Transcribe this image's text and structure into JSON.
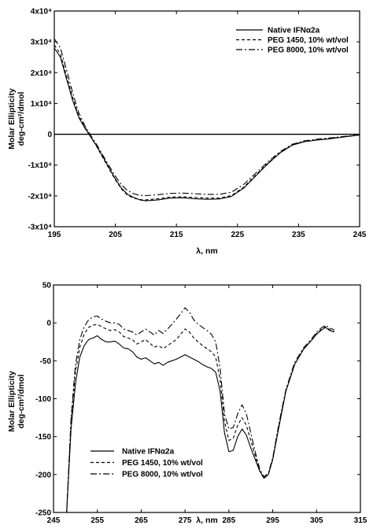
{
  "chart_data": [
    {
      "type": "line",
      "xlabel": "λ, nm",
      "ylabel": [
        "Molar Ellipticity",
        "deg-cm²/dmol"
      ],
      "xlim": [
        195,
        245
      ],
      "ylim": [
        -30000,
        40000
      ],
      "xticks": [
        195,
        205,
        215,
        225,
        235,
        245
      ],
      "xtick_labels": [
        "195",
        "205",
        "215",
        "225",
        "235",
        "245"
      ],
      "yticks": [
        40000,
        30000,
        20000,
        10000,
        0,
        -10000,
        -20000,
        -30000
      ],
      "ytick_labels": [
        "4x10⁴",
        "3x10⁴",
        "2x10⁴",
        "1x10⁴",
        "0",
        "-1x10⁴",
        "-2x10⁴",
        "-3x10⁴"
      ],
      "grid": false,
      "zero_line": true,
      "legend_position": "top-right",
      "series": [
        {
          "name": "Native IFNα2a",
          "style": "solid",
          "x": [
            195,
            196,
            197,
            198,
            199,
            200,
            201,
            202,
            203,
            204,
            205,
            206,
            207,
            208,
            209,
            210,
            212,
            214,
            216,
            218,
            220,
            222,
            224,
            226,
            228,
            230,
            232,
            234,
            236,
            238,
            240,
            242,
            245
          ],
          "y": [
            28000,
            25000,
            18000,
            11000,
            5500,
            2000,
            -1000,
            -4000,
            -7500,
            -11000,
            -14500,
            -17500,
            -19500,
            -20500,
            -21300,
            -21600,
            -21300,
            -20700,
            -20600,
            -20900,
            -21100,
            -21000,
            -20200,
            -17500,
            -13500,
            -9500,
            -6000,
            -3500,
            -2400,
            -1900,
            -1500,
            -1000,
            -200
          ]
        },
        {
          "name": "PEG 1450, 10% wt/vol",
          "style": "dashed",
          "x": [
            195,
            196,
            197,
            198,
            199,
            200,
            201,
            202,
            203,
            204,
            205,
            206,
            207,
            208,
            209,
            210,
            212,
            214,
            216,
            218,
            220,
            222,
            224,
            226,
            228,
            230,
            232,
            234,
            236,
            238,
            240,
            242,
            245
          ],
          "y": [
            29000,
            26000,
            19000,
            12000,
            6000,
            2300,
            -800,
            -4200,
            -7800,
            -11300,
            -14800,
            -17800,
            -19800,
            -20700,
            -21200,
            -21300,
            -20900,
            -20400,
            -20300,
            -20500,
            -20700,
            -20700,
            -19900,
            -17200,
            -13200,
            -9300,
            -5900,
            -3400,
            -2300,
            -1800,
            -1400,
            -900,
            -200
          ]
        },
        {
          "name": "PEG 8000, 10% wt/vol",
          "style": "dashdot",
          "x": [
            195,
            196,
            197,
            198,
            199,
            200,
            201,
            202,
            203,
            204,
            205,
            206,
            207,
            208,
            209,
            210,
            212,
            214,
            216,
            218,
            220,
            222,
            224,
            226,
            228,
            230,
            232,
            234,
            236,
            238,
            240,
            242,
            245
          ],
          "y": [
            31000,
            28000,
            21000,
            13500,
            7000,
            2800,
            -500,
            -3500,
            -7000,
            -10300,
            -13600,
            -16400,
            -18300,
            -19300,
            -19800,
            -19900,
            -19600,
            -19200,
            -19100,
            -19300,
            -19500,
            -19500,
            -18800,
            -16300,
            -12600,
            -8900,
            -5600,
            -3200,
            -2100,
            -1600,
            -1200,
            -800,
            -150
          ]
        }
      ]
    },
    {
      "type": "line",
      "xlabel": "λ, nm",
      "ylabel": [
        "Molar Ellipticity",
        "deg-cm²/dmol"
      ],
      "xlim": [
        245,
        315
      ],
      "ylim": [
        -250,
        50
      ],
      "xticks": [
        245,
        255,
        265,
        275,
        285,
        295,
        305,
        315
      ],
      "xtick_labels": [
        "245",
        "255",
        "265",
        "275",
        "285",
        "295",
        "305",
        "315"
      ],
      "yticks": [
        50,
        0,
        -50,
        -100,
        -150,
        -200,
        -250
      ],
      "ytick_labels": [
        "50",
        "0",
        "-50",
        "-100",
        "-150",
        "-200",
        "-250"
      ],
      "grid": false,
      "legend_position": "bottom-left",
      "series": [
        {
          "name": "Native IFNα2a",
          "style": "solid",
          "x": [
            248,
            249,
            250,
            251,
            252,
            253,
            254,
            255,
            256,
            257,
            258,
            259,
            260,
            261,
            262,
            263,
            264,
            265,
            266,
            267,
            268,
            269,
            270,
            271,
            272,
            273,
            274,
            275,
            276,
            277,
            278,
            279,
            280,
            281,
            282,
            283,
            284,
            285,
            286,
            287,
            288,
            289,
            290,
            291,
            292,
            293,
            294,
            295,
            296,
            297,
            298,
            300,
            302,
            304,
            305,
            306,
            307,
            308,
            309
          ],
          "y": [
            -250,
            -140,
            -80,
            -45,
            -30,
            -22,
            -20,
            -17,
            -22,
            -25,
            -25,
            -24,
            -28,
            -33,
            -34,
            -38,
            -45,
            -48,
            -46,
            -50,
            -54,
            -52,
            -56,
            -52,
            -50,
            -48,
            -45,
            -42,
            -45,
            -48,
            -51,
            -55,
            -58,
            -60,
            -65,
            -90,
            -145,
            -170,
            -168,
            -150,
            -140,
            -148,
            -165,
            -180,
            -195,
            -205,
            -200,
            -180,
            -150,
            -120,
            -90,
            -55,
            -35,
            -22,
            -15,
            -10,
            -6,
            -10,
            -12
          ]
        },
        {
          "name": "PEG 1450, 10% wt/vol",
          "style": "dashed",
          "x": [
            248,
            249,
            250,
            251,
            252,
            253,
            254,
            255,
            256,
            257,
            258,
            259,
            260,
            261,
            262,
            263,
            264,
            265,
            266,
            267,
            268,
            269,
            270,
            271,
            272,
            273,
            274,
            275,
            276,
            277,
            278,
            279,
            280,
            281,
            282,
            283,
            284,
            285,
            286,
            287,
            288,
            289,
            290,
            291,
            292,
            293,
            294,
            295,
            296,
            297,
            298,
            300,
            302,
            304,
            305,
            306,
            307,
            308,
            309
          ],
          "y": [
            -250,
            -130,
            -65,
            -32,
            -15,
            -6,
            -3,
            -2,
            -5,
            -8,
            -10,
            -9,
            -12,
            -18,
            -20,
            -22,
            -28,
            -25,
            -22,
            -27,
            -32,
            -30,
            -34,
            -30,
            -26,
            -22,
            -15,
            -8,
            -12,
            -20,
            -25,
            -30,
            -34,
            -38,
            -45,
            -75,
            -130,
            -155,
            -152,
            -135,
            -125,
            -135,
            -155,
            -175,
            -195,
            -205,
            -200,
            -180,
            -148,
            -118,
            -90,
            -55,
            -35,
            -22,
            -14,
            -9,
            -5,
            -9,
            -11
          ]
        },
        {
          "name": "PEG 8000, 10% wt/vol",
          "style": "dashdot",
          "x": [
            248,
            249,
            250,
            251,
            252,
            253,
            254,
            255,
            256,
            257,
            258,
            259,
            260,
            261,
            262,
            263,
            264,
            265,
            266,
            267,
            268,
            269,
            270,
            271,
            272,
            273,
            274,
            275,
            276,
            277,
            278,
            279,
            280,
            281,
            282,
            283,
            284,
            285,
            286,
            287,
            288,
            289,
            290,
            291,
            292,
            293,
            294,
            295,
            296,
            297,
            298,
            300,
            302,
            304,
            305,
            306,
            307,
            308,
            309
          ],
          "y": [
            -250,
            -125,
            -55,
            -22,
            -5,
            4,
            8,
            9,
            5,
            2,
            0,
            0,
            -2,
            -8,
            -10,
            -12,
            -16,
            -12,
            -8,
            -12,
            -16,
            -10,
            -14,
            -8,
            -2,
            5,
            12,
            20,
            14,
            4,
            -2,
            -6,
            -10,
            -15,
            -25,
            -60,
            -120,
            -140,
            -138,
            -120,
            -108,
            -120,
            -145,
            -170,
            -192,
            -203,
            -198,
            -178,
            -146,
            -116,
            -88,
            -52,
            -33,
            -20,
            -12,
            -7,
            -3,
            -7,
            -9
          ]
        }
      ]
    }
  ]
}
